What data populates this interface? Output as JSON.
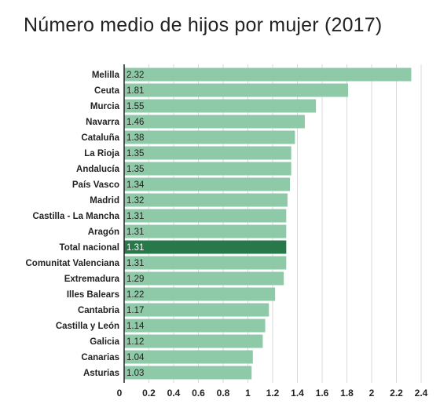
{
  "chart_data": {
    "type": "bar",
    "orientation": "horizontal",
    "title": "Número medio de hijos por mujer (2017)",
    "categories": [
      "Melilla",
      "Ceuta",
      "Murcia",
      "Navarra",
      "Cataluña",
      "La Rioja",
      "Andalucía",
      "País Vasco",
      "Madrid",
      "Castilla - La Mancha",
      "Aragón",
      "Total nacional",
      "Comunitat Valenciana",
      "Extremadura",
      "Illes Balears",
      "Cantabria",
      "Castilla y León",
      "Galicia",
      "Canarias",
      "Asturias"
    ],
    "values": [
      2.32,
      1.81,
      1.55,
      1.46,
      1.38,
      1.35,
      1.35,
      1.34,
      1.32,
      1.31,
      1.31,
      1.31,
      1.31,
      1.29,
      1.22,
      1.17,
      1.14,
      1.12,
      1.04,
      1.03
    ],
    "value_labels": [
      "2.32",
      "1.81",
      "1.55",
      "1.46",
      "1.38",
      "1.35",
      "1.35",
      "1.34",
      "1.32",
      "1.31",
      "1.31",
      "1.31",
      "1.31",
      "1.29",
      "1.22",
      "1.17",
      "1.14",
      "1.12",
      "1.04",
      "1.03"
    ],
    "highlight": "Total nacional",
    "xticks": [
      0,
      0.2,
      0.4,
      0.6,
      0.8,
      1,
      1.2,
      1.4,
      1.6,
      1.8,
      2,
      2.2,
      2.4
    ],
    "xtick_labels": [
      "0",
      "0.2",
      "0.4",
      "0.6",
      "0.8",
      "1",
      "1.2",
      "1.4",
      "1.6",
      "1.8",
      "2",
      "2.2",
      "2.4"
    ],
    "xlim": [
      0,
      2.5
    ],
    "grid": true,
    "colors": {
      "bar": "#8ec9a8",
      "highlight": "#27794a",
      "grid": "#d9d9d9",
      "axis": "#222222"
    }
  }
}
